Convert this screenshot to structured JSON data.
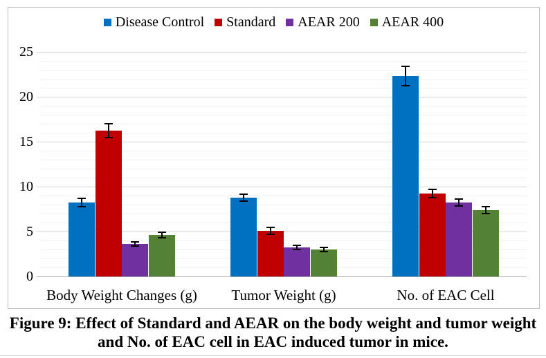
{
  "figure": {
    "caption_line1": "Figure 9: Effect of Standard and AEAR on the body weight and tumor weight",
    "caption_line2": "and No. of EAC cell in EAC induced tumor in mice."
  },
  "chart_data": {
    "type": "bar",
    "title": "",
    "xlabel": "",
    "ylabel": "",
    "categories": [
      "Body Weight Changes (g)",
      "Tumor Weight (g)",
      "No. of EAC Cell"
    ],
    "series": [
      {
        "name": "Disease Control",
        "color": "#0070C0",
        "values": [
          8.2,
          8.8,
          22.3
        ],
        "errors": [
          0.45,
          0.4,
          1.1
        ]
      },
      {
        "name": "Standard",
        "color": "#C00000",
        "values": [
          16.2,
          5.1,
          9.2
        ],
        "errors": [
          0.8,
          0.35,
          0.45
        ]
      },
      {
        "name": "AEAR 200",
        "color": "#7030A0",
        "values": [
          3.6,
          3.2,
          8.2
        ],
        "errors": [
          0.25,
          0.2,
          0.4
        ]
      },
      {
        "name": "AEAR 400",
        "color": "#538135",
        "values": [
          4.6,
          3.0,
          7.4
        ],
        "errors": [
          0.3,
          0.2,
          0.4
        ]
      }
    ],
    "ylim": [
      0,
      25
    ],
    "yticks": [
      0,
      5,
      10,
      15,
      20,
      25
    ],
    "major_unit": 5,
    "minor_unit": 1,
    "grid": true,
    "error_bars": true,
    "legend_position": "top",
    "grid_colors": {
      "baseline": "#a9a9a9",
      "major": "#d4d4d4",
      "minor": "#f0f0f0"
    }
  }
}
